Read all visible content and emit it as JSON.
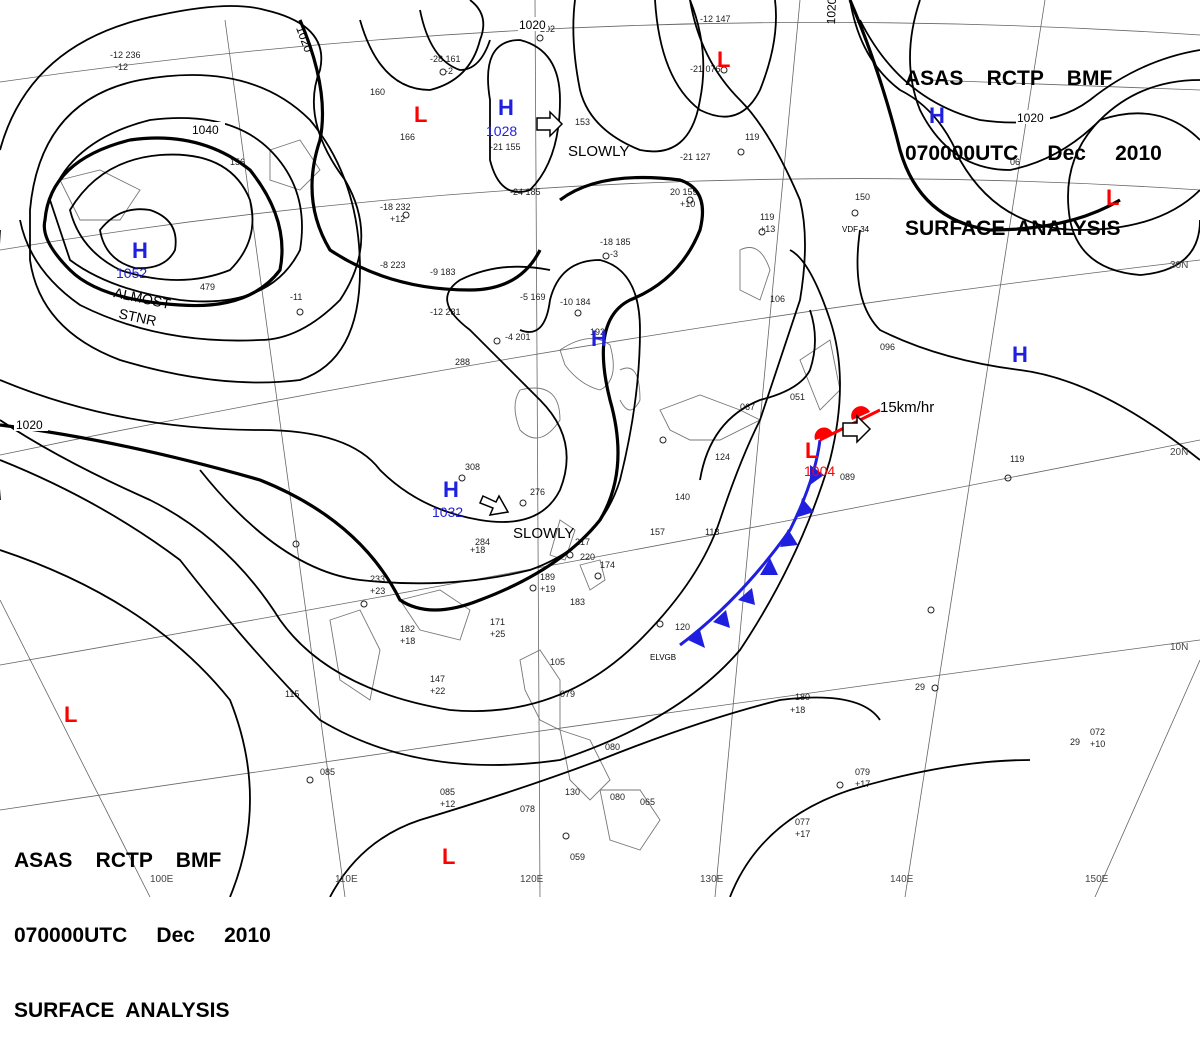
{
  "header": {
    "line1": "ASAS    RCTP    BMF",
    "line2": "070000UTC     Dec     2010",
    "line3": "SURFACE  ANALYSIS"
  },
  "colors": {
    "high": "#1f1fe0",
    "low": "#ff0000",
    "front": "#1f1fe0",
    "warm": "#ff0000",
    "isobar": "#000000",
    "grid": "#555555"
  },
  "pressure_centers": {
    "high_1": {
      "symbol": "H",
      "value": "1052"
    },
    "high_2": {
      "symbol": "H",
      "value": "1028"
    },
    "high_3": {
      "symbol": "H",
      "value": "1032"
    },
    "high_4": {
      "symbol": "H",
      "value": ""
    },
    "high_5": {
      "symbol": "H",
      "value": ""
    },
    "high_6": {
      "symbol": "H",
      "value": ""
    },
    "low_1": {
      "symbol": "L",
      "value": "1004"
    },
    "low_2": {
      "symbol": "L",
      "value": ""
    }
  },
  "motion": {
    "slowly_1": "SLOWLY",
    "slowly_2": "SLOWLY",
    "speed": "15km/hr"
  },
  "annotations": {
    "almost": "ALMOST",
    "stnr": "STNR",
    "elvgb": "ELVGB",
    "vdf": "VDF 34"
  },
  "isobars": {
    "i1020a": "1020",
    "i1020b": "1020",
    "i1020c": "1020",
    "i1020d": "1020",
    "i1040": "1040",
    "i1020e": "1020"
  },
  "axis_labels": {
    "lat_30": "30N",
    "lat_20": "20N",
    "lat_10": "10N",
    "lon_100": "100E",
    "lon_110": "110E",
    "lon_120": "120E",
    "lon_130": "130E",
    "lon_140": "140E",
    "lon_150": "150E"
  }
}
